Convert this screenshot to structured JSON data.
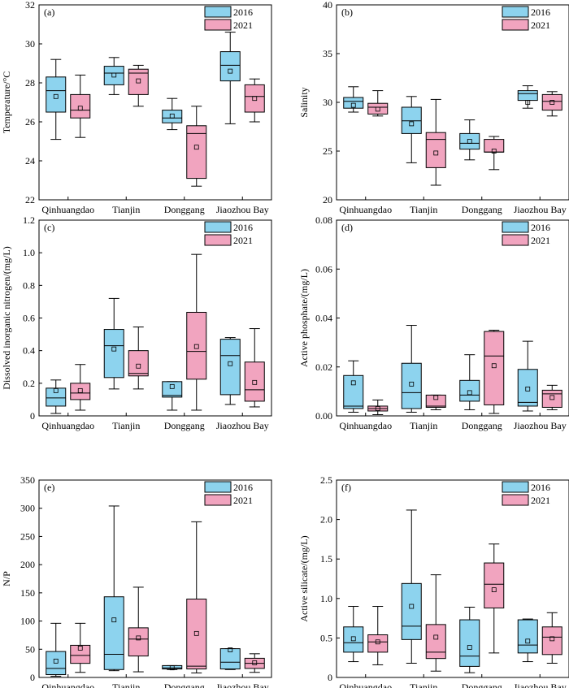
{
  "colors": {
    "s2016": "#8dd3ee",
    "s2021": "#f1a4bf",
    "stroke": "#000000"
  },
  "chart_data": [
    {
      "id": "a",
      "panel_label": "(a)",
      "type": "box",
      "ylabel": "Temperature/°C",
      "ylim": [
        22,
        32
      ],
      "yticks": [
        22,
        24,
        26,
        28,
        30,
        32
      ],
      "ytick_labels": [
        "22",
        "24",
        "26",
        "28",
        "30",
        "32"
      ],
      "categories": [
        "Qinhuangdao",
        "Tianjin",
        "Donggang",
        "Jiaozhou Bay"
      ],
      "legend": [
        "2016",
        "2021"
      ],
      "legend_position": "top-right",
      "series": [
        {
          "name": "2016",
          "boxes": [
            {
              "min": 25.1,
              "q1": 26.5,
              "median": 27.6,
              "q3": 28.3,
              "max": 29.2,
              "mean": 27.3
            },
            {
              "min": 27.4,
              "q1": 27.9,
              "median": 28.5,
              "q3": 28.85,
              "max": 29.3,
              "mean": 28.4
            },
            {
              "min": 25.6,
              "q1": 25.95,
              "median": 26.2,
              "q3": 26.6,
              "max": 27.2,
              "mean": 26.3
            },
            {
              "min": 25.9,
              "q1": 28.1,
              "median": 28.9,
              "q3": 29.6,
              "max": 30.6,
              "mean": 28.6
            }
          ]
        },
        {
          "name": "2021",
          "boxes": [
            {
              "min": 25.2,
              "q1": 26.2,
              "median": 26.6,
              "q3": 27.4,
              "max": 28.4,
              "mean": 26.7
            },
            {
              "min": 26.8,
              "q1": 27.4,
              "median": 28.5,
              "q3": 28.7,
              "max": 28.9,
              "mean": 28.1
            },
            {
              "min": 22.7,
              "q1": 23.1,
              "median": 25.4,
              "q3": 25.8,
              "max": 26.8,
              "mean": 24.7
            },
            {
              "min": 26.0,
              "q1": 26.5,
              "median": 27.3,
              "q3": 27.9,
              "max": 28.2,
              "mean": 27.2
            }
          ]
        }
      ]
    },
    {
      "id": "b",
      "panel_label": "(b)",
      "type": "box",
      "ylabel": "Salinity",
      "ylim": [
        20,
        40
      ],
      "yticks": [
        20,
        25,
        30,
        35,
        40
      ],
      "ytick_labels": [
        "20",
        "25",
        "30",
        "35",
        "40"
      ],
      "categories": [
        "Qinhuangdao",
        "Tianjin",
        "Donggang",
        "Jiaozhou Bay"
      ],
      "legend": [
        "2016",
        "2021"
      ],
      "legend_position": "top-right",
      "series": [
        {
          "name": "2016",
          "boxes": [
            {
              "min": 29.0,
              "q1": 29.4,
              "median": 30.1,
              "q3": 30.5,
              "max": 31.6,
              "mean": 29.7
            },
            {
              "min": 23.8,
              "q1": 26.8,
              "median": 28.1,
              "q3": 29.5,
              "max": 30.6,
              "mean": 27.8
            },
            {
              "min": 24.1,
              "q1": 25.2,
              "median": 25.8,
              "q3": 26.8,
              "max": 28.2,
              "mean": 26.0
            },
            {
              "min": 29.4,
              "q1": 30.2,
              "median": 30.9,
              "q3": 31.2,
              "max": 31.7,
              "mean": 30.0
            }
          ]
        },
        {
          "name": "2021",
          "boxes": [
            {
              "min": 28.6,
              "q1": 28.8,
              "median": 29.5,
              "q3": 29.9,
              "max": 31.2,
              "mean": 29.3
            },
            {
              "min": 21.5,
              "q1": 23.3,
              "median": 26.2,
              "q3": 26.9,
              "max": 30.3,
              "mean": 24.8
            },
            {
              "min": 23.1,
              "q1": 24.9,
              "median": 24.9,
              "q3": 26.2,
              "max": 26.5,
              "mean": 25.0
            },
            {
              "min": 28.6,
              "q1": 29.2,
              "median": 30.1,
              "q3": 30.8,
              "max": 31.1,
              "mean": 30.0
            }
          ]
        }
      ]
    },
    {
      "id": "c",
      "panel_label": "(c)",
      "type": "box",
      "ylabel": "Dissolved inorganic nitrogen/(mg/L)",
      "ylim": [
        0,
        1.2
      ],
      "yticks": [
        0,
        0.2,
        0.4,
        0.6,
        0.8,
        1.0,
        1.2
      ],
      "ytick_labels": [
        "0",
        "0.2",
        "0.4",
        "0.6",
        "0.8",
        "1.0",
        "1.2"
      ],
      "categories": [
        "Qinhuangdao",
        "Tianjin",
        "Donggang",
        "Jiaozhou Bay"
      ],
      "legend": [
        "2016",
        "2021"
      ],
      "legend_position": "top-right",
      "series": [
        {
          "name": "2016",
          "boxes": [
            {
              "min": 0.015,
              "q1": 0.06,
              "median": 0.11,
              "q3": 0.17,
              "max": 0.22,
              "mean": 0.155
            },
            {
              "min": 0.165,
              "q1": 0.235,
              "median": 0.43,
              "q3": 0.53,
              "max": 0.72,
              "mean": 0.41
            },
            {
              "min": 0.035,
              "q1": 0.115,
              "median": 0.125,
              "q3": 0.21,
              "max": 0.21,
              "mean": 0.18
            },
            {
              "min": 0.07,
              "q1": 0.13,
              "median": 0.37,
              "q3": 0.47,
              "max": 0.48,
              "mean": 0.32
            }
          ]
        },
        {
          "name": "2021",
          "boxes": [
            {
              "min": 0.035,
              "q1": 0.1,
              "median": 0.14,
              "q3": 0.2,
              "max": 0.315,
              "mean": 0.155
            },
            {
              "min": 0.165,
              "q1": 0.245,
              "median": 0.26,
              "q3": 0.4,
              "max": 0.545,
              "mean": 0.305
            },
            {
              "min": 0.035,
              "q1": 0.225,
              "median": 0.395,
              "q3": 0.635,
              "max": 0.99,
              "mean": 0.425
            },
            {
              "min": 0.055,
              "q1": 0.09,
              "median": 0.16,
              "q3": 0.33,
              "max": 0.535,
              "mean": 0.205
            }
          ]
        }
      ]
    },
    {
      "id": "d",
      "panel_label": "(d)",
      "type": "box",
      "ylabel": "Active phosphate/(mg/L)",
      "ylim": [
        0,
        0.08
      ],
      "yticks": [
        0,
        0.02,
        0.04,
        0.06,
        0.08
      ],
      "ytick_labels": [
        "0.00",
        "0.02",
        "0.04",
        "0.06",
        "0.08"
      ],
      "categories": [
        "Qinhuangdao",
        "Tianjin",
        "Donggang",
        "Jiaozhou Bay"
      ],
      "legend": [
        "2016",
        "2021"
      ],
      "legend_position": "top-right",
      "series": [
        {
          "name": "2016",
          "boxes": [
            {
              "min": 0.0015,
              "q1": 0.003,
              "median": 0.004,
              "q3": 0.0165,
              "max": 0.0225,
              "mean": 0.0135
            },
            {
              "min": 0.0015,
              "q1": 0.003,
              "median": 0.0095,
              "q3": 0.0215,
              "max": 0.037,
              "mean": 0.013
            },
            {
              "min": 0.0025,
              "q1": 0.006,
              "median": 0.0085,
              "q3": 0.0145,
              "max": 0.025,
              "mean": 0.0095
            },
            {
              "min": 0.002,
              "q1": 0.004,
              "median": 0.0055,
              "q3": 0.019,
              "max": 0.0305,
              "mean": 0.011
            }
          ]
        },
        {
          "name": "2021",
          "boxes": [
            {
              "min": 0.0005,
              "q1": 0.002,
              "median": 0.003,
              "q3": 0.004,
              "max": 0.0065,
              "mean": 0.003
            },
            {
              "min": 0.0025,
              "q1": 0.0035,
              "median": 0.004,
              "q3": 0.0085,
              "max": 0.0085,
              "mean": 0.0075
            },
            {
              "min": 0.001,
              "q1": 0.0045,
              "median": 0.0245,
              "q3": 0.0345,
              "max": 0.035,
              "mean": 0.0205
            },
            {
              "min": 0.0025,
              "q1": 0.0035,
              "median": 0.009,
              "q3": 0.0105,
              "max": 0.0125,
              "mean": 0.0075
            }
          ]
        }
      ]
    },
    {
      "id": "e",
      "panel_label": "(e)",
      "type": "box",
      "ylabel": "N/P",
      "ylim": [
        0,
        350
      ],
      "yticks": [
        0,
        50,
        100,
        150,
        200,
        250,
        300,
        350
      ],
      "ytick_labels": [
        "0",
        "50",
        "100",
        "150",
        "200",
        "250",
        "300",
        "350"
      ],
      "categories": [
        "Qinhuangdao",
        "Tianjin",
        "Donggang",
        "Jiaozhou Bay"
      ],
      "legend": [
        "2016",
        "2021"
      ],
      "legend_position": "top-right",
      "series": [
        {
          "name": "2016",
          "boxes": [
            {
              "min": 2,
              "q1": 5,
              "median": 16,
              "q3": 46,
              "max": 96,
              "mean": 29
            },
            {
              "min": 12,
              "q1": 14,
              "median": 41,
              "q3": 143,
              "max": 304,
              "mean": 102
            },
            {
              "min": 14,
              "q1": 15,
              "median": 17,
              "q3": 21,
              "max": 21,
              "mean": 17
            },
            {
              "min": 14,
              "q1": 15,
              "median": 27,
              "q3": 51,
              "max": 51,
              "mean": 49
            }
          ]
        },
        {
          "name": "2021",
          "boxes": [
            {
              "min": 9,
              "q1": 25,
              "median": 39,
              "q3": 57,
              "max": 96,
              "mean": 52
            },
            {
              "min": 10,
              "q1": 38,
              "median": 68,
              "q3": 88,
              "max": 160,
              "mean": 70
            },
            {
              "min": 8,
              "q1": 15,
              "median": 20,
              "q3": 139,
              "max": 276,
              "mean": 78
            },
            {
              "min": 9,
              "q1": 16,
              "median": 25,
              "q3": 34,
              "max": 42,
              "mean": 26
            }
          ]
        }
      ]
    },
    {
      "id": "f",
      "panel_label": "(f)",
      "type": "box",
      "ylabel": "Active silicate/(mg/L)",
      "ylim": [
        0,
        2.5
      ],
      "yticks": [
        0,
        0.5,
        1.0,
        1.5,
        2.0,
        2.5
      ],
      "ytick_labels": [
        "0",
        "0.5",
        "1.0",
        "1.5",
        "2.0",
        "2.5"
      ],
      "categories": [
        "Qinhuangdao",
        "Tianjin",
        "Donggang",
        "Jiaozhou Bay"
      ],
      "legend": [
        "2016",
        "2021"
      ],
      "legend_position": "top-right",
      "series": [
        {
          "name": "2016",
          "boxes": [
            {
              "min": 0.2,
              "q1": 0.32,
              "median": 0.44,
              "q3": 0.64,
              "max": 0.9,
              "mean": 0.49
            },
            {
              "min": 0.18,
              "q1": 0.48,
              "median": 0.65,
              "q3": 1.19,
              "max": 2.12,
              "mean": 0.9
            },
            {
              "min": 0.06,
              "q1": 0.14,
              "median": 0.27,
              "q3": 0.73,
              "max": 0.89,
              "mean": 0.38
            },
            {
              "min": 0.2,
              "q1": 0.31,
              "median": 0.41,
              "q3": 0.73,
              "max": 0.74,
              "mean": 0.46
            }
          ]
        },
        {
          "name": "2021",
          "boxes": [
            {
              "min": 0.16,
              "q1": 0.32,
              "median": 0.45,
              "q3": 0.54,
              "max": 0.9,
              "mean": 0.45
            },
            {
              "min": 0.08,
              "q1": 0.24,
              "median": 0.32,
              "q3": 0.67,
              "max": 1.3,
              "mean": 0.51
            },
            {
              "min": 0.31,
              "q1": 0.88,
              "median": 1.18,
              "q3": 1.45,
              "max": 1.69,
              "mean": 1.11
            },
            {
              "min": 0.18,
              "q1": 0.29,
              "median": 0.51,
              "q3": 0.64,
              "max": 0.82,
              "mean": 0.49
            }
          ]
        }
      ]
    }
  ]
}
